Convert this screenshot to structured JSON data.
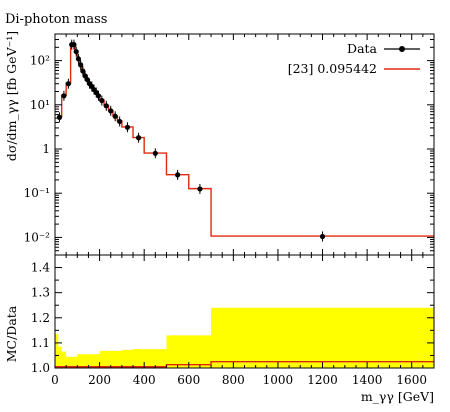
{
  "chart_data": {
    "type": "line",
    "title": "Di-photon mass",
    "xlabel": "m_γγ [GeV]",
    "ylabel": "dσ/dm_γγ [fb GeV⁻¹]",
    "ratio_ylabel": "MC/Data",
    "xlim": [
      0,
      1700
    ],
    "ylim": [
      0.004,
      400
    ],
    "yscale": "log",
    "ratio_ylim": [
      1.0,
      1.45
    ],
    "x_ticks": [
      0,
      200,
      400,
      600,
      800,
      1000,
      1200,
      1400,
      1600
    ],
    "y_ticks": [
      {
        "value": 0.01,
        "label": "10⁻²"
      },
      {
        "value": 0.1,
        "label": "10⁻¹"
      },
      {
        "value": 1,
        "label": "1"
      },
      {
        "value": 10,
        "label": "10¹"
      },
      {
        "value": 100,
        "label": "10²"
      }
    ],
    "ratio_ticks": [
      "1.0",
      "1.1",
      "1.2",
      "1.3",
      "1.4"
    ],
    "legend": {
      "position": "top-right"
    },
    "series": [
      {
        "name": "Data",
        "color": "#000000",
        "kind": "points",
        "x": [
          20,
          40,
          60,
          75,
          85,
          95,
          105,
          115,
          125,
          135,
          145,
          155,
          165,
          175,
          185,
          195,
          210,
          230,
          250,
          270,
          290,
          325,
          375,
          450,
          550,
          650,
          1200
        ],
        "y": [
          5.2,
          16,
          30,
          230,
          230,
          160,
          110,
          80,
          58,
          45,
          37,
          30,
          26,
          22,
          19,
          16,
          12.5,
          9.5,
          7.3,
          5.5,
          4.2,
          3.1,
          1.8,
          0.8,
          0.26,
          0.125,
          0.0105
        ]
      },
      {
        "name": "[23] 0.095442",
        "color": "#e02a10",
        "kind": "histogram",
        "edges": [
          10,
          30,
          50,
          70,
          80,
          90,
          100,
          110,
          120,
          130,
          140,
          150,
          160,
          170,
          180,
          190,
          200,
          220,
          240,
          260,
          280,
          300,
          350,
          400,
          500,
          600,
          700,
          1700
        ],
        "values": [
          5.4,
          16.5,
          31,
          235,
          235,
          162,
          112,
          81,
          59,
          46,
          37.5,
          30.5,
          26.5,
          22.5,
          19.5,
          16.3,
          12.8,
          9.7,
          7.4,
          5.6,
          4.3,
          3.15,
          1.82,
          0.81,
          0.263,
          0.127,
          0.0107
        ]
      }
    ],
    "ratio": {
      "uncertainty_band_color": "#ffff00",
      "band_edges": [
        0,
        15,
        30,
        50,
        100,
        200,
        300,
        350,
        400,
        500,
        700,
        1700
      ],
      "band_upper": [
        1.135,
        1.085,
        1.065,
        1.045,
        1.055,
        1.068,
        1.072,
        1.075,
        1.075,
        1.13,
        1.24
      ],
      "mc_edges": [
        0,
        500,
        700,
        1700
      ],
      "mc_values": [
        1.005,
        1.013,
        1.025
      ]
    }
  }
}
